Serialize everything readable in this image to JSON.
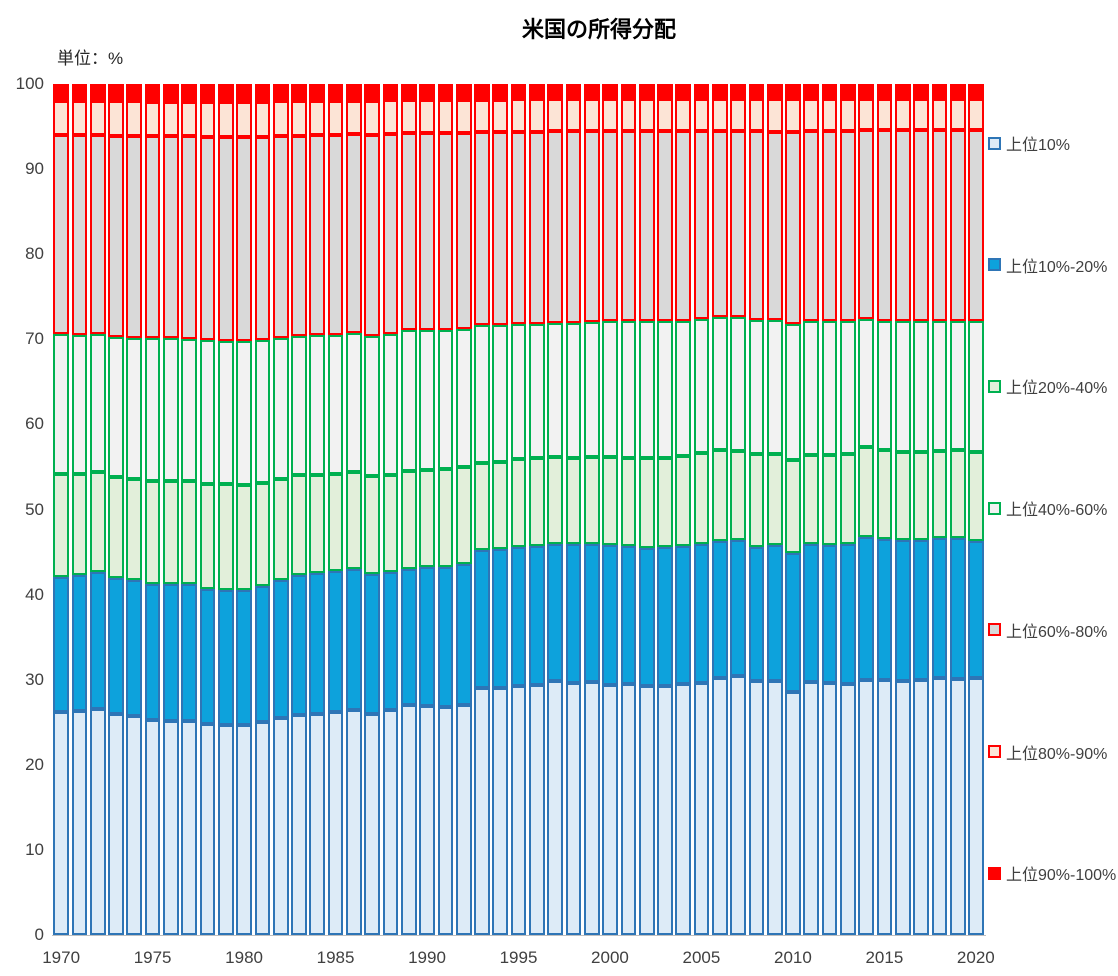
{
  "title": "米国の所得分配",
  "unit_label": "単位：%",
  "chart_data": {
    "type": "bar",
    "stacked": true,
    "title": "米国の所得分配",
    "unit": "%",
    "xlabel": "",
    "ylabel": "単位：%",
    "ylim": [
      0,
      100
    ],
    "y_ticks": [
      0,
      10,
      20,
      30,
      40,
      50,
      60,
      70,
      80,
      90,
      100
    ],
    "x_tick_years": [
      1970,
      1975,
      1980,
      1985,
      1990,
      1995,
      2000,
      2005,
      2010,
      2015,
      2020
    ],
    "legend_position": "right",
    "x": [
      1970,
      1971,
      1972,
      1973,
      1974,
      1975,
      1976,
      1977,
      1978,
      1979,
      1980,
      1981,
      1982,
      1983,
      1984,
      1985,
      1986,
      1987,
      1988,
      1989,
      1990,
      1991,
      1992,
      1993,
      1994,
      1995,
      1996,
      1997,
      1998,
      1999,
      2000,
      2001,
      2002,
      2003,
      2004,
      2005,
      2006,
      2007,
      2008,
      2009,
      2010,
      2011,
      2012,
      2013,
      2014,
      2015,
      2016,
      2017,
      2018,
      2019,
      2020
    ],
    "series": [
      {
        "name": "上位10%",
        "fill": "#DDEBF7",
        "border": "#2E75B6",
        "values": [
          26.2,
          26.3,
          26.6,
          26.0,
          25.7,
          25.3,
          25.2,
          25.1,
          24.8,
          24.7,
          24.7,
          25.0,
          25.5,
          25.8,
          26.0,
          26.2,
          26.5,
          26.0,
          26.4,
          27.0,
          26.9,
          26.8,
          27.0,
          29.0,
          29.0,
          29.3,
          29.4,
          29.8,
          29.6,
          29.7,
          29.4,
          29.5,
          29.3,
          29.3,
          29.5,
          29.6,
          30.2,
          30.4,
          29.8,
          29.8,
          28.6,
          29.7,
          29.6,
          29.5,
          30.0,
          30.0,
          29.8,
          30.0,
          30.2,
          30.1,
          30.2
        ]
      },
      {
        "name": "上位10%-20%",
        "fill": "#0DA2DC",
        "border": "#2E75B6",
        "values": [
          15.9,
          16.0,
          16.1,
          16.0,
          16.0,
          16.0,
          16.0,
          16.1,
          15.9,
          15.8,
          15.9,
          16.0,
          16.2,
          16.5,
          16.5,
          16.6,
          16.5,
          16.4,
          16.2,
          16.0,
          16.3,
          16.5,
          16.6,
          16.3,
          16.4,
          16.3,
          16.3,
          16.2,
          16.3,
          16.3,
          16.4,
          16.2,
          16.2,
          16.3,
          16.2,
          16.3,
          16.1,
          16.0,
          15.8,
          16.0,
          16.3,
          16.2,
          16.2,
          16.4,
          16.8,
          16.5,
          16.6,
          16.4,
          16.4,
          16.6,
          16.1
        ]
      },
      {
        "name": "上位20%-40%",
        "fill": "#E2EFDA",
        "border": "#00B050",
        "values": [
          12.1,
          11.9,
          11.7,
          11.8,
          11.9,
          12.1,
          12.1,
          12.1,
          12.3,
          12.5,
          12.3,
          12.1,
          11.9,
          11.7,
          11.6,
          11.4,
          11.4,
          11.5,
          11.5,
          11.5,
          11.5,
          11.5,
          11.4,
          10.2,
          10.2,
          10.3,
          10.3,
          10.2,
          10.2,
          10.2,
          10.4,
          10.4,
          10.5,
          10.5,
          10.6,
          10.7,
          10.7,
          10.5,
          10.9,
          10.7,
          10.9,
          10.5,
          10.6,
          10.6,
          10.5,
          10.5,
          10.4,
          10.4,
          10.3,
          10.3,
          10.5
        ]
      },
      {
        "name": "上位40%-60%",
        "fill": "#F2F2F2",
        "border": "#00B050",
        "values": [
          16.4,
          16.3,
          16.2,
          16.5,
          16.6,
          16.7,
          16.8,
          16.7,
          16.9,
          16.8,
          16.9,
          16.8,
          16.6,
          16.4,
          16.4,
          16.3,
          16.3,
          16.5,
          16.5,
          16.6,
          16.4,
          16.3,
          16.2,
          16.2,
          16.1,
          15.9,
          15.8,
          15.7,
          15.8,
          15.8,
          15.9,
          16.1,
          16.1,
          16.0,
          15.9,
          15.8,
          15.6,
          15.7,
          15.8,
          15.8,
          16.0,
          15.7,
          15.7,
          15.6,
          15.1,
          15.2,
          15.3,
          15.3,
          15.3,
          15.2,
          15.3
        ]
      },
      {
        "name": "上位60%-80%",
        "fill": "#D9D9D9",
        "border": "#FF0000",
        "values": [
          23.4,
          23.5,
          23.4,
          23.6,
          23.7,
          23.8,
          23.8,
          23.9,
          23.9,
          24.0,
          24.0,
          23.9,
          23.7,
          23.5,
          23.5,
          23.5,
          23.4,
          23.6,
          23.5,
          23.1,
          23.1,
          23.1,
          23.1,
          22.7,
          22.7,
          22.6,
          22.6,
          22.6,
          22.6,
          22.5,
          22.4,
          22.3,
          22.4,
          22.4,
          22.3,
          22.1,
          21.9,
          21.9,
          22.2,
          22.1,
          22.6,
          22.4,
          22.4,
          22.4,
          22.2,
          22.4,
          22.5,
          22.5,
          22.4,
          22.4,
          22.5
        ]
      },
      {
        "name": "上位80%-90%",
        "fill": "#FCE4D6",
        "border": "#FF0000",
        "values": [
          4.0,
          4.0,
          4.0,
          4.1,
          4.1,
          4.0,
          4.0,
          4.0,
          4.1,
          4.1,
          4.1,
          4.1,
          4.1,
          4.1,
          4.0,
          4.0,
          3.9,
          4.0,
          4.0,
          3.9,
          3.9,
          3.9,
          3.8,
          3.7,
          3.7,
          3.8,
          3.8,
          3.7,
          3.7,
          3.7,
          3.7,
          3.7,
          3.7,
          3.7,
          3.7,
          3.7,
          3.7,
          3.7,
          3.7,
          3.8,
          3.8,
          3.7,
          3.7,
          3.7,
          3.7,
          3.7,
          3.7,
          3.7,
          3.7,
          3.7,
          3.7
        ]
      },
      {
        "name": "上位90%-100%",
        "fill": "#FF0000",
        "border": "#FF0000",
        "values": [
          2.0,
          2.0,
          2.0,
          2.0,
          2.0,
          2.1,
          2.1,
          2.1,
          2.1,
          2.1,
          2.1,
          2.1,
          2.0,
          2.0,
          2.0,
          2.0,
          2.0,
          2.0,
          1.9,
          1.9,
          1.9,
          1.9,
          1.9,
          1.9,
          1.9,
          1.8,
          1.8,
          1.8,
          1.8,
          1.8,
          1.8,
          1.8,
          1.8,
          1.8,
          1.8,
          1.8,
          1.8,
          1.8,
          1.8,
          1.8,
          1.8,
          1.8,
          1.8,
          1.8,
          1.7,
          1.7,
          1.7,
          1.7,
          1.7,
          1.7,
          1.7
        ]
      }
    ]
  }
}
